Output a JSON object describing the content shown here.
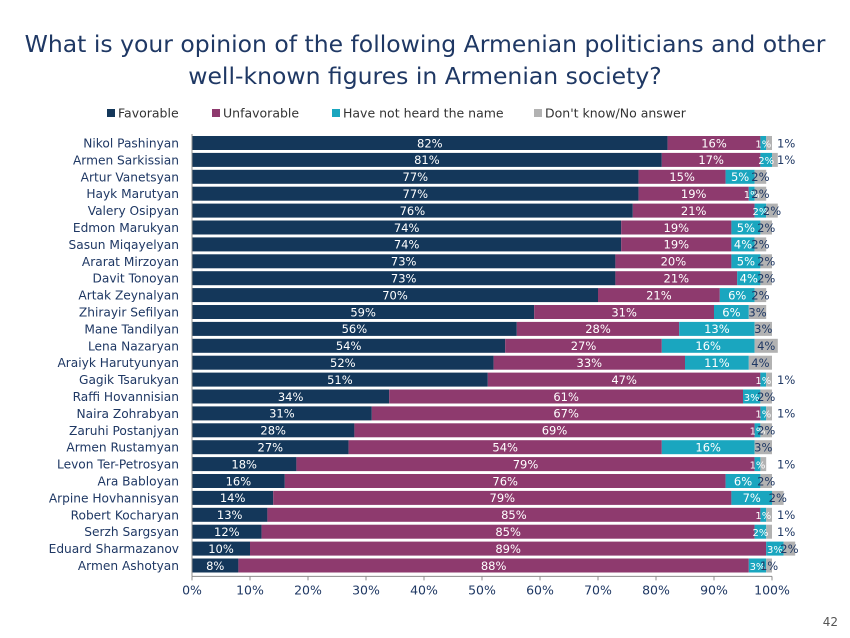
{
  "chart_data": {
    "type": "bar",
    "stacked": true,
    "orientation": "horizontal",
    "title": "What is your opinion of the following Armenian politicians and other well-known figures in Armenian society?",
    "categories": [
      "Nikol Pashinyan",
      "Armen Sarkissian",
      "Artur Vanetsyan",
      "Hayk Marutyan",
      "Valery Osipyan",
      "Edmon Marukyan",
      "Sasun Miqayelyan",
      "Ararat Mirzoyan",
      "Davit Tonoyan",
      "Artak Zeynalyan",
      "Zhirayir Sefilyan",
      "Mane Tandilyan",
      "Lena Nazaryan",
      "Araiyk Harutyunyan",
      "Gagik Tsarukyan",
      "Raffi Hovannisian",
      "Naira Zohrabyan",
      "Zaruhi Postanjyan",
      "Armen Rustamyan",
      "Levon Ter-Petrosyan",
      "Ara Babloyan",
      "Arpine Hovhannisyan",
      "Robert Kocharyan",
      "Serzh Sargsyan",
      "Eduard Sharmazanov",
      "Armen Ashotyan"
    ],
    "series": [
      {
        "name": "Favorable",
        "color": "#14375a",
        "values": [
          82,
          81,
          77,
          77,
          76,
          74,
          74,
          73,
          73,
          70,
          59,
          56,
          54,
          52,
          51,
          34,
          31,
          28,
          27,
          18,
          16,
          14,
          13,
          12,
          10,
          8
        ]
      },
      {
        "name": "Unfavorable",
        "color": "#8e3a6e",
        "values": [
          16,
          17,
          15,
          19,
          21,
          19,
          19,
          20,
          21,
          21,
          31,
          28,
          27,
          33,
          47,
          61,
          67,
          69,
          54,
          79,
          76,
          79,
          85,
          85,
          89,
          88
        ]
      },
      {
        "name": "Have not heard the name",
        "color": "#1aa6bf",
        "values": [
          1,
          2,
          5,
          1,
          2,
          5,
          4,
          5,
          4,
          6,
          6,
          13,
          16,
          11,
          1,
          3,
          1,
          1,
          16,
          1,
          6,
          7,
          1,
          2,
          3,
          3
        ]
      },
      {
        "name": "Don't know/No answer",
        "color": "#b2b2b2",
        "values": [
          1,
          1,
          2,
          2,
          2,
          2,
          2,
          2,
          2,
          2,
          3,
          3,
          4,
          4,
          1,
          2,
          1,
          2,
          3,
          1,
          2,
          2,
          1,
          1,
          2,
          1
        ]
      }
    ],
    "xlim": [
      0,
      100
    ],
    "x_ticks": [
      "0%",
      "10%",
      "20%",
      "30%",
      "40%",
      "50%",
      "60%",
      "70%",
      "80%",
      "90%",
      "100%"
    ],
    "legend_position": "top",
    "grid": false
  },
  "page_number": "42"
}
